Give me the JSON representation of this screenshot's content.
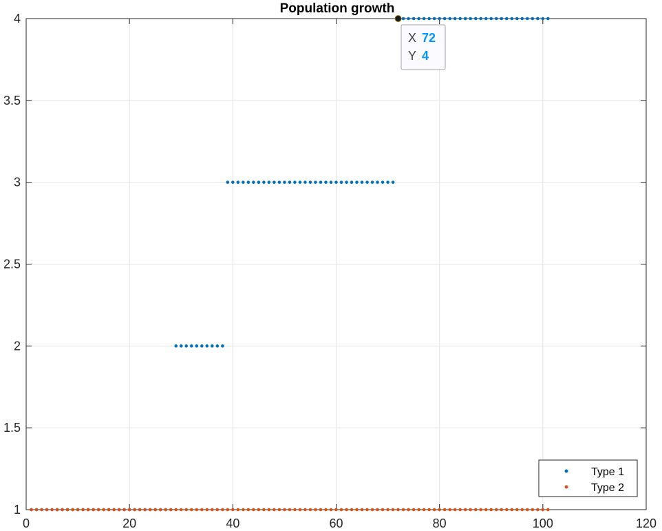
{
  "chart_data": {
    "type": "scatter",
    "title": "Population growth",
    "xlabel": "",
    "ylabel": "",
    "xlim": [
      0,
      120
    ],
    "ylim": [
      1,
      4
    ],
    "xticks": [
      0,
      20,
      40,
      60,
      80,
      100,
      120
    ],
    "yticks": [
      1,
      1.5,
      2,
      2.5,
      3,
      3.5,
      4
    ],
    "xtick_labels": [
      "0",
      "20",
      "40",
      "60",
      "80",
      "100",
      "120"
    ],
    "ytick_labels": [
      "1",
      "1.5",
      "2",
      "2.5",
      "3",
      "3.5",
      "4"
    ],
    "grid": true,
    "legend_position": "bottom-right",
    "series": [
      {
        "name": "Type 1",
        "color": "#0072bd",
        "marker": "point",
        "segments": [
          {
            "x_start": 1,
            "x_end": 28,
            "step": 1,
            "y": 1
          },
          {
            "x_start": 29,
            "x_end": 38,
            "step": 1,
            "y": 2
          },
          {
            "x_start": 39,
            "x_end": 71,
            "step": 1,
            "y": 3
          },
          {
            "x_start": 72,
            "x_end": 101,
            "step": 1,
            "y": 4
          }
        ]
      },
      {
        "name": "Type 2",
        "color": "#d95319",
        "marker": "point",
        "segments": [
          {
            "x_start": 1,
            "x_end": 101,
            "step": 1,
            "y": 1
          }
        ]
      }
    ],
    "datatip": {
      "x_label": "X",
      "x_value": "72",
      "y_label": "Y",
      "y_value": "4",
      "anchor": {
        "x": 72,
        "y": 4
      }
    }
  }
}
